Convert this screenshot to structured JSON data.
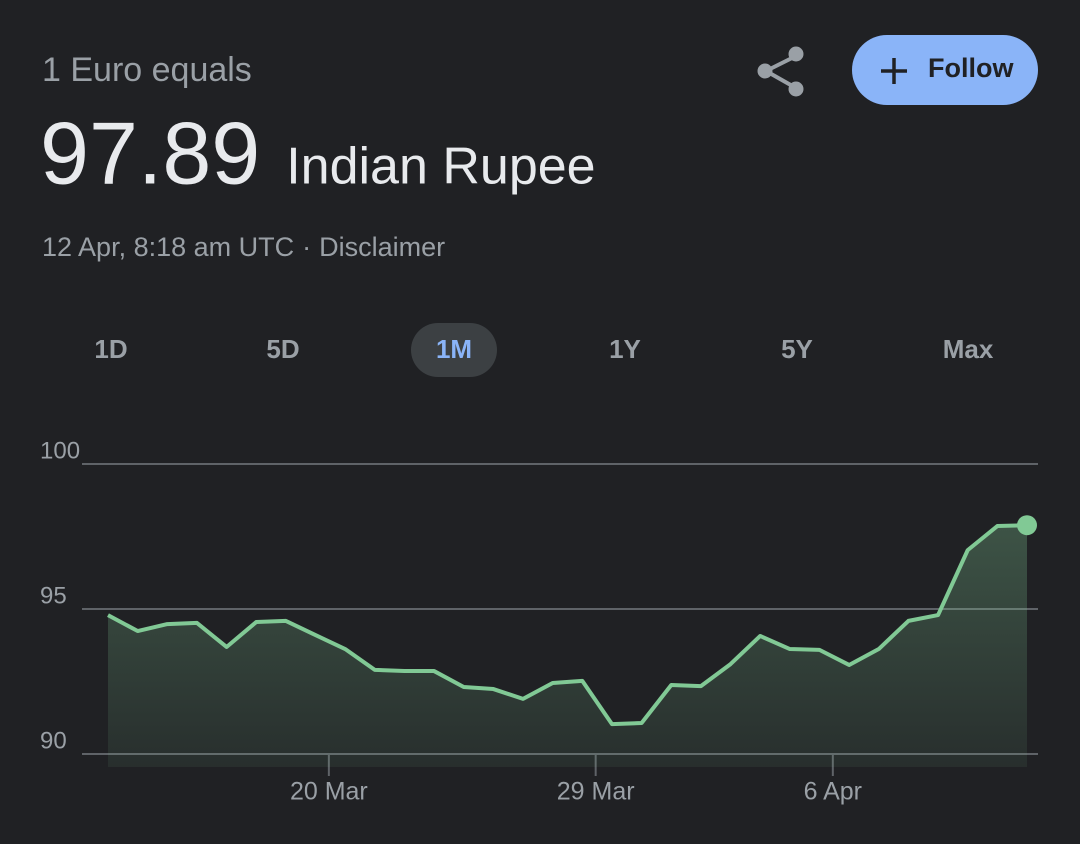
{
  "header": {
    "label": "1 Euro equals",
    "rate": "97.89",
    "currency": "Indian Rupee",
    "timestamp": "12 Apr, 8:18 am UTC",
    "separator": "·",
    "disclaimer": "Disclaimer",
    "follow": "Follow"
  },
  "tabs": {
    "items": [
      "1D",
      "5D",
      "1M",
      "1Y",
      "5Y",
      "Max"
    ],
    "selected": 2
  },
  "chart_data": {
    "type": "line",
    "x": [
      0,
      1,
      2,
      3,
      4,
      5,
      6,
      7,
      8,
      9,
      10,
      11,
      12,
      13,
      14,
      15,
      16,
      17,
      18,
      19,
      20,
      21,
      22,
      23,
      24,
      25,
      26,
      27,
      28,
      29,
      30,
      31
    ],
    "series": [
      {
        "color": "#81c995",
        "values": [
          94.79,
          94.24,
          94.48,
          94.52,
          93.69,
          94.55,
          94.59,
          94.1,
          93.62,
          92.9,
          92.86,
          92.86,
          92.31,
          92.24,
          91.9,
          92.45,
          92.52,
          91.03,
          91.07,
          92.38,
          92.34,
          93.1,
          94.07,
          93.62,
          93.59,
          93.07,
          93.62,
          94.59,
          94.79,
          97.03,
          97.86,
          97.89
        ]
      }
    ],
    "xlim": [
      0,
      31
    ],
    "xticks": [
      {
        "value": 7.45,
        "label": "20 Mar"
      },
      {
        "value": 16.45,
        "label": "29 Mar"
      },
      {
        "value": 24.45,
        "label": "6 Apr"
      }
    ],
    "ylim": [
      90,
      100
    ],
    "yticks": [
      90,
      95,
      100
    ],
    "grid": true
  }
}
